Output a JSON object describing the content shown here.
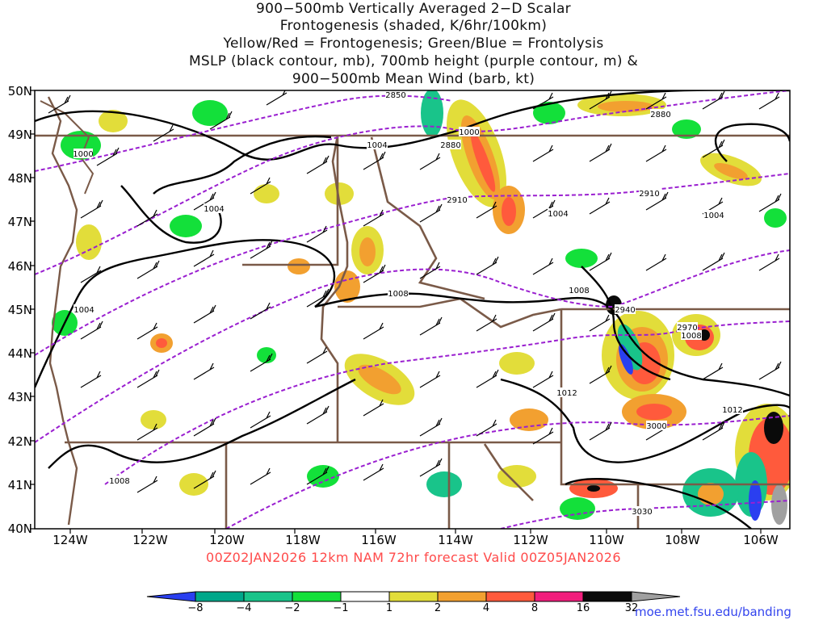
{
  "title_lines": [
    "900−500mb Vertically Averaged 2−D Scalar",
    "Frontogenesis (shaded, K/6hr/100km)",
    "Yellow/Red = Frontogenesis;  Green/Blue = Frontolysis",
    "MSLP (black contour, mb), 700mb height (purple contour, m) &",
    "900−500mb Mean Wind (barb, kt)"
  ],
  "map": {
    "lat_labels": [
      "50N",
      "49N",
      "48N",
      "47N",
      "46N",
      "45N",
      "44N",
      "43N",
      "42N",
      "41N",
      "40N"
    ],
    "lon_labels": [
      "124W",
      "122W",
      "120W",
      "118W",
      "116W",
      "114W",
      "112W",
      "110W",
      "108W",
      "106W"
    ],
    "mslp_labels": [
      "1000",
      "1000",
      "1004",
      "1004",
      "1004",
      "1004",
      "1004",
      "1008",
      "1008",
      "1008",
      "1008",
      "1012",
      "1012"
    ],
    "height_labels": [
      "2850",
      "2880",
      "2880",
      "2910",
      "2910",
      "2940",
      "2970",
      "3000",
      "3030"
    ],
    "colors": {
      "mslp": "#000000",
      "height": "#9a1fd0",
      "borders": "#7a5a48",
      "barbs": "#000000"
    }
  },
  "valid_text": "00Z02JAN2026 12km NAM 72hr forecast Valid 00Z05JAN2026",
  "colorbar": {
    "labels": [
      "−8",
      "−4",
      "−2",
      "−1",
      "1",
      "2",
      "4",
      "8",
      "16",
      "32"
    ],
    "colors": [
      "#2a3ff0",
      "#00a78a",
      "#19c48a",
      "#13e03a",
      "#ffffff",
      "#e2dd3a",
      "#f2a030",
      "#ff5a3c",
      "#f11e7c",
      "#0a0a0a",
      "#a0a0a0"
    ]
  },
  "credit": "moe.met.fsu.edu/banding"
}
